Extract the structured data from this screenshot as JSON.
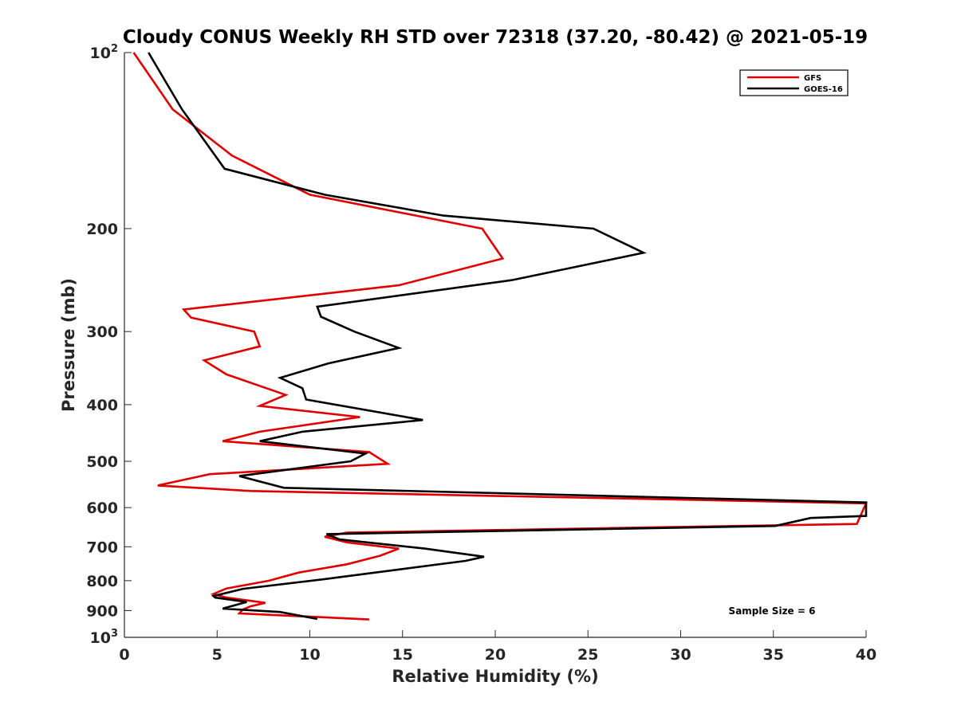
{
  "chart_data": {
    "type": "line",
    "title": "Cloudy CONUS Weekly RH STD over 72318 (37.20, -80.42) @ 2021-05-19",
    "xlabel": "Relative Humidity (%)",
    "ylabel": "Pressure (mb)",
    "xlim": [
      0,
      40
    ],
    "ylim": [
      100,
      1000
    ],
    "y_scale": "log",
    "y_reversed": true,
    "x_ticks": [
      0,
      5,
      10,
      15,
      20,
      25,
      30,
      35,
      40
    ],
    "x_tick_labels": [
      "0",
      "5",
      "10",
      "15",
      "20",
      "25",
      "30",
      "35",
      "40"
    ],
    "y_ticks": [
      100,
      200,
      300,
      400,
      500,
      600,
      700,
      800,
      900,
      1000
    ],
    "y_tick_labels": [
      {
        "text": "10",
        "sup": "2"
      },
      {
        "text": "200",
        "sup": ""
      },
      {
        "text": "300",
        "sup": ""
      },
      {
        "text": "400",
        "sup": ""
      },
      {
        "text": "500",
        "sup": ""
      },
      {
        "text": "600",
        "sup": ""
      },
      {
        "text": "700",
        "sup": ""
      },
      {
        "text": "800",
        "sup": ""
      },
      {
        "text": "900",
        "sup": ""
      },
      {
        "text": "10",
        "sup": "3"
      }
    ],
    "legend_position": "top-right",
    "annotation": "Sample Size = 6",
    "series": [
      {
        "name": "GFS",
        "color": "#e00000",
        "points": [
          [
            0.5,
            100
          ],
          [
            2.6,
            125
          ],
          [
            5.8,
            150
          ],
          [
            10,
            175
          ],
          [
            19.3,
            200
          ],
          [
            20.4,
            225
          ],
          [
            14.8,
            250
          ],
          [
            3.2,
            275
          ],
          [
            3.6,
            284
          ],
          [
            7.0,
            300
          ],
          [
            7.3,
            318
          ],
          [
            4.3,
            336
          ],
          [
            5.5,
            355
          ],
          [
            8.7,
            385
          ],
          [
            7.3,
            402
          ],
          [
            12.7,
            420
          ],
          [
            7.3,
            445
          ],
          [
            5.3,
            462
          ],
          [
            13.2,
            482
          ],
          [
            14.2,
            505
          ],
          [
            4.6,
            526
          ],
          [
            1.8,
            550
          ],
          [
            6.8,
            562
          ],
          [
            40,
            590
          ],
          [
            39.5,
            640
          ],
          [
            12,
            662
          ],
          [
            10.8,
            673
          ],
          [
            12,
            688
          ],
          [
            14.8,
            705
          ],
          [
            13.8,
            725
          ],
          [
            12,
            750
          ],
          [
            9.4,
            775
          ],
          [
            7.8,
            800
          ],
          [
            5.5,
            825
          ],
          [
            4.8,
            843
          ],
          [
            5.5,
            855
          ],
          [
            7.6,
            873
          ],
          [
            6.8,
            885
          ],
          [
            6.4,
            896
          ],
          [
            6.2,
            910
          ],
          [
            13.2,
            932
          ]
        ]
      },
      {
        "name": "GOES-16",
        "color": "#000000",
        "points": [
          [
            1.3,
            100
          ],
          [
            3.1,
            125
          ],
          [
            5.4,
            158
          ],
          [
            10.8,
            175
          ],
          [
            17.2,
            190
          ],
          [
            25.3,
            200
          ],
          [
            28,
            220
          ],
          [
            20.9,
            245
          ],
          [
            10.4,
            272
          ],
          [
            10.6,
            283
          ],
          [
            12.4,
            300
          ],
          [
            14.8,
            320
          ],
          [
            11,
            340
          ],
          [
            8.4,
            360
          ],
          [
            9.6,
            375
          ],
          [
            9.8,
            392
          ],
          [
            16.1,
            425
          ],
          [
            9.6,
            445
          ],
          [
            7.3,
            462
          ],
          [
            13,
            485
          ],
          [
            12.2,
            500
          ],
          [
            6.2,
            530
          ],
          [
            8.6,
            555
          ],
          [
            40,
            588
          ],
          [
            40,
            620
          ],
          [
            37,
            625
          ],
          [
            35.1,
            645
          ],
          [
            10.9,
            666
          ],
          [
            11.6,
            680
          ],
          [
            16.2,
            705
          ],
          [
            19.4,
            728
          ],
          [
            18.4,
            740
          ],
          [
            10.8,
            795
          ],
          [
            6.4,
            826
          ],
          [
            4.8,
            850
          ],
          [
            4.9,
            855
          ],
          [
            6.6,
            870
          ],
          [
            5.3,
            893
          ],
          [
            8.4,
            905
          ],
          [
            10.4,
            930
          ]
        ]
      }
    ]
  }
}
